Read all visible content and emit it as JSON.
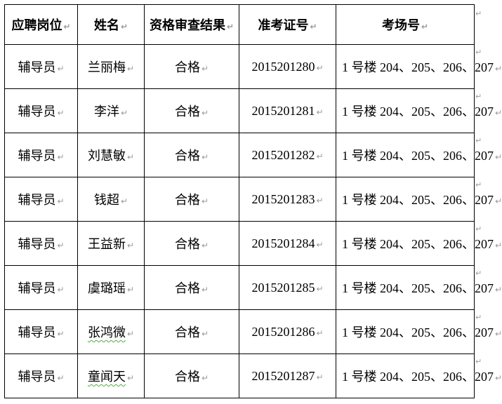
{
  "table": {
    "columns": [
      {
        "key": "position",
        "label": "应聘岗位"
      },
      {
        "key": "name",
        "label": "姓名"
      },
      {
        "key": "result",
        "label": "资格审查结果"
      },
      {
        "key": "ticket",
        "label": "准考证号"
      },
      {
        "key": "room",
        "label": "考场号"
      }
    ],
    "rows": [
      {
        "position": "辅导员",
        "name": "兰丽梅",
        "name_flagged": false,
        "result": "合格",
        "ticket": "2015201280",
        "room": "1 号楼 204、205、206、207"
      },
      {
        "position": "辅导员",
        "name": "李洋",
        "name_flagged": false,
        "result": "合格",
        "ticket": "2015201281",
        "room": "1 号楼 204、205、206、207"
      },
      {
        "position": "辅导员",
        "name": "刘慧敏",
        "name_flagged": false,
        "result": "合格",
        "ticket": "2015201282",
        "room": "1 号楼 204、205、206、207"
      },
      {
        "position": "辅导员",
        "name": "钱超",
        "name_flagged": false,
        "result": "合格",
        "ticket": "2015201283",
        "room": "1 号楼 204、205、206、207"
      },
      {
        "position": "辅导员",
        "name": "王益新",
        "name_flagged": false,
        "result": "合格",
        "ticket": "2015201284",
        "room": "1 号楼 204、205、206、207"
      },
      {
        "position": "辅导员",
        "name": "虞璐瑶",
        "name_flagged": false,
        "result": "合格",
        "ticket": "2015201285",
        "room": "1 号楼 204、205、206、207"
      },
      {
        "position": "辅导员",
        "name": "张鸿微",
        "name_flagged": true,
        "result": "合格",
        "ticket": "2015201286",
        "room": "1 号楼 204、205、206、207"
      },
      {
        "position": "辅导员",
        "name": "童闻天",
        "name_flagged": true,
        "result": "合格",
        "ticket": "2015201287",
        "room": "1 号楼 204、205、206、207"
      }
    ]
  },
  "formatting_marks": {
    "paragraph_mark": "↵",
    "row_end_mark": "↵"
  },
  "colors": {
    "border": "#000000",
    "text": "#000000",
    "formatting_mark": "#9b9b9b",
    "grammar_squiggle": "#55aa44",
    "background": "#ffffff"
  }
}
